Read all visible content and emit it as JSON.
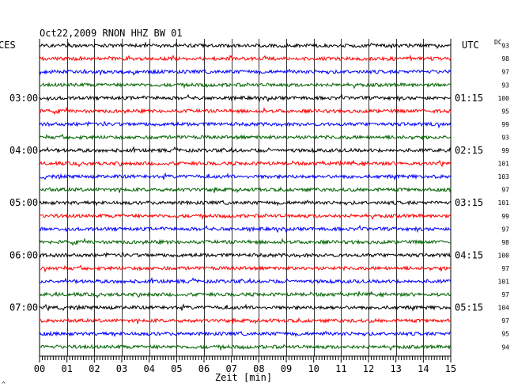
{
  "chart_data": {
    "type": "line",
    "title": "Oct22,2009   RNON HHZ BW 01",
    "left_timezone_label": "CES",
    "right_timezone_label": "UTC",
    "dc_header": "DC",
    "xlabel": "Zeit [min]",
    "xlim": [
      0,
      15
    ],
    "x_ticks": [
      "00",
      "01",
      "02",
      "03",
      "04",
      "05",
      "06",
      "07",
      "08",
      "09",
      "10",
      "11",
      "12",
      "13",
      "14",
      "15"
    ],
    "left_time_labels": [
      {
        "trace": 4,
        "label": "03:00"
      },
      {
        "trace": 8,
        "label": "04:00"
      },
      {
        "trace": 12,
        "label": "05:00"
      },
      {
        "trace": 16,
        "label": "06:00"
      },
      {
        "trace": 20,
        "label": "07:00"
      }
    ],
    "right_time_labels": [
      {
        "trace": 4,
        "label": "01:15"
      },
      {
        "trace": 8,
        "label": "02:15"
      },
      {
        "trace": 12,
        "label": "03:15"
      },
      {
        "trace": 16,
        "label": "04:15"
      },
      {
        "trace": 20,
        "label": "05:15"
      }
    ],
    "trace_colors": [
      "#000000",
      "#ff0000",
      "#0000ff",
      "#006400"
    ],
    "trace_count": 24,
    "dc_values": [
      "93",
      "98",
      "97",
      "93",
      "100",
      "95",
      "99",
      "93",
      "99",
      "101",
      "103",
      "97",
      "101",
      "99",
      "97",
      "98",
      "100",
      "97",
      "101",
      "97",
      "104",
      "97",
      "95",
      "94"
    ],
    "grid": true,
    "corner_mark": "^"
  }
}
